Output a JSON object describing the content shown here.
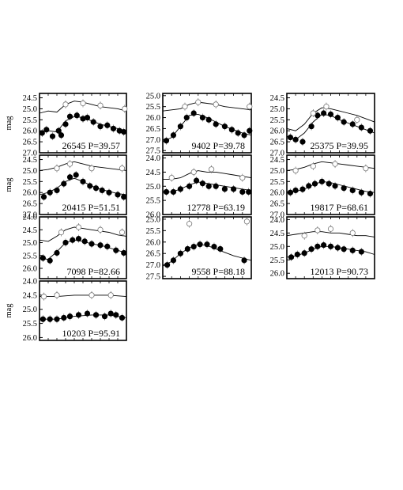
{
  "chart_data": [
    {
      "type": "scatter",
      "title": "26545 P=39.57",
      "ylabel": "mag",
      "ylim": [
        27.0,
        24.3
      ],
      "yticks": [
        "24.5",
        "25.0",
        "25.5",
        "26.0",
        "26.5",
        "27.0"
      ],
      "series": [
        {
          "name": "",
          "marker": "filled",
          "x": [
            0.03,
            0.08,
            0.15,
            0.22,
            0.25,
            0.3,
            0.35,
            0.43,
            0.5,
            0.55,
            0.62,
            0.7,
            0.78,
            0.85,
            0.92,
            0.97
          ],
          "y": [
            26.1,
            25.95,
            26.25,
            26.0,
            26.2,
            25.7,
            25.35,
            25.3,
            25.45,
            25.4,
            25.6,
            25.8,
            25.75,
            25.9,
            26.0,
            26.05
          ]
        },
        {
          "name": "",
          "marker": "open",
          "x": [
            0.3,
            0.5,
            0.7,
            0.98
          ],
          "y": [
            24.8,
            24.75,
            24.85,
            25.0
          ]
        }
      ],
      "curves": [
        {
          "x": [
            0,
            0.1,
            0.2,
            0.3,
            0.4,
            0.5,
            0.6,
            0.7,
            0.8,
            0.9,
            1.0
          ],
          "y": [
            26.05,
            26.0,
            26.05,
            25.55,
            25.35,
            25.4,
            25.55,
            25.7,
            25.8,
            25.9,
            26.0
          ]
        },
        {
          "x": [
            0,
            0.1,
            0.2,
            0.3,
            0.4,
            0.5,
            0.6,
            0.7,
            0.8,
            0.9,
            1.0
          ],
          "y": [
            25.2,
            25.1,
            25.15,
            24.8,
            24.65,
            24.7,
            24.8,
            24.9,
            24.95,
            25.0,
            25.1
          ]
        }
      ]
    },
    {
      "type": "scatter",
      "title": "9402  P=39.78",
      "ylabel": "",
      "ylim": [
        27.6,
        24.9
      ],
      "yticks": [
        "25.0",
        "25.5",
        "26.0",
        "26.5",
        "27.0",
        "27.5"
      ],
      "series": [
        {
          "name": "",
          "marker": "filled",
          "x": [
            0.04,
            0.12,
            0.2,
            0.27,
            0.35,
            0.45,
            0.52,
            0.6,
            0.7,
            0.78,
            0.85,
            0.92,
            0.98
          ],
          "y": [
            27.05,
            26.8,
            26.4,
            26.0,
            25.8,
            26.0,
            26.1,
            26.3,
            26.4,
            26.55,
            26.7,
            26.8,
            26.6
          ]
        },
        {
          "name": "",
          "marker": "open",
          "x": [
            0.25,
            0.4,
            0.6,
            0.98
          ],
          "y": [
            25.5,
            25.3,
            25.4,
            25.5
          ]
        }
      ],
      "curves": [
        {
          "x": [
            0,
            0.1,
            0.2,
            0.3,
            0.4,
            0.5,
            0.6,
            0.7,
            0.8,
            0.9,
            1.0
          ],
          "y": [
            27.1,
            26.9,
            26.4,
            25.9,
            25.85,
            26.0,
            26.2,
            26.4,
            26.55,
            26.7,
            26.8
          ]
        },
        {
          "x": [
            0,
            0.1,
            0.2,
            0.3,
            0.4,
            0.5,
            0.6,
            0.7,
            0.8,
            0.9,
            1.0
          ],
          "y": [
            25.7,
            25.65,
            25.6,
            25.4,
            25.3,
            25.35,
            25.4,
            25.5,
            25.55,
            25.6,
            25.65
          ]
        }
      ]
    },
    {
      "type": "scatter",
      "title": "25375 P=39.95",
      "ylabel": "",
      "ylim": [
        27.0,
        24.3
      ],
      "yticks": [
        "24.5",
        "25.0",
        "25.5",
        "26.0",
        "26.5",
        "27.0"
      ],
      "series": [
        {
          "name": "",
          "marker": "filled",
          "x": [
            0.04,
            0.1,
            0.18,
            0.28,
            0.35,
            0.42,
            0.5,
            0.58,
            0.65,
            0.75,
            0.85,
            0.95
          ],
          "y": [
            26.3,
            26.4,
            26.5,
            25.8,
            25.3,
            25.2,
            25.25,
            25.4,
            25.6,
            25.7,
            25.85,
            26.0
          ]
        },
        {
          "name": "",
          "marker": "open",
          "x": [
            0.3,
            0.45,
            0.8
          ],
          "y": [
            25.2,
            24.9,
            25.5
          ]
        }
      ],
      "curves": [
        {
          "x": [
            0,
            0.1,
            0.2,
            0.3,
            0.4,
            0.5,
            0.6,
            0.7,
            0.8,
            0.9,
            1.0
          ],
          "y": [
            26.25,
            26.4,
            26.1,
            25.6,
            25.25,
            25.3,
            25.5,
            25.65,
            25.8,
            25.95,
            26.1
          ]
        },
        {
          "x": [
            0,
            0.1,
            0.2,
            0.3,
            0.4,
            0.5,
            0.6,
            0.7,
            0.8,
            0.9,
            1.0
          ],
          "y": [
            25.9,
            26.0,
            25.7,
            25.2,
            24.95,
            25.0,
            25.1,
            25.2,
            25.3,
            25.45,
            25.6
          ]
        }
      ]
    },
    {
      "type": "scatter",
      "title": "20415 P=51.51",
      "ylabel": "mag",
      "ylim": [
        27.0,
        24.3
      ],
      "yticks": [
        "24.5",
        "25.0",
        "25.5",
        "26.0",
        "26.5",
        "27.0"
      ],
      "series": [
        {
          "name": "",
          "marker": "filled",
          "x": [
            0.05,
            0.12,
            0.2,
            0.28,
            0.35,
            0.42,
            0.5,
            0.58,
            0.65,
            0.72,
            0.8,
            0.9,
            0.97
          ],
          "y": [
            26.2,
            26.0,
            25.9,
            25.6,
            25.3,
            25.2,
            25.5,
            25.7,
            25.8,
            25.9,
            26.0,
            26.1,
            26.2
          ]
        },
        {
          "name": "",
          "marker": "open",
          "x": [
            0.2,
            0.35,
            0.6,
            0.95
          ],
          "y": [
            24.9,
            24.7,
            24.9,
            24.9
          ]
        }
      ],
      "curves": [
        {
          "x": [
            0,
            0.1,
            0.2,
            0.3,
            0.4,
            0.5,
            0.6,
            0.7,
            0.8,
            0.9,
            1.0
          ],
          "y": [
            26.1,
            26.0,
            25.8,
            25.5,
            25.35,
            25.5,
            25.7,
            25.85,
            25.95,
            26.05,
            26.1
          ]
        },
        {
          "x": [
            0,
            0.1,
            0.2,
            0.3,
            0.4,
            0.5,
            0.6,
            0.7,
            0.8,
            0.9,
            1.0
          ],
          "y": [
            25.0,
            24.95,
            24.85,
            24.7,
            24.6,
            24.7,
            24.8,
            24.85,
            24.9,
            24.95,
            25.0
          ]
        }
      ]
    },
    {
      "type": "scatter",
      "title": "12778 P=63.19",
      "ylabel": "",
      "ylim": [
        26.0,
        23.9
      ],
      "yticks": [
        "24.0",
        "24.5",
        "25.0",
        "25.5",
        "26.0"
      ],
      "series": [
        {
          "name": "",
          "marker": "filled",
          "x": [
            0.04,
            0.12,
            0.2,
            0.3,
            0.38,
            0.45,
            0.52,
            0.6,
            0.7,
            0.8,
            0.9,
            0.97
          ],
          "y": [
            25.2,
            25.2,
            25.1,
            25.0,
            24.8,
            24.9,
            25.0,
            25.0,
            25.1,
            25.1,
            25.2,
            25.2
          ]
        },
        {
          "name": "",
          "marker": "open",
          "x": [
            0.1,
            0.35,
            0.55,
            0.9
          ],
          "y": [
            24.7,
            24.5,
            24.4,
            24.7
          ]
        }
      ],
      "curves": [
        {
          "x": [
            0,
            0.1,
            0.2,
            0.3,
            0.4,
            0.5,
            0.6,
            0.7,
            0.8,
            0.9,
            1.0
          ],
          "y": [
            25.2,
            25.2,
            25.1,
            24.95,
            24.85,
            24.9,
            24.95,
            25.0,
            25.05,
            25.1,
            25.15
          ]
        },
        {
          "x": [
            0,
            0.1,
            0.2,
            0.3,
            0.4,
            0.5,
            0.6,
            0.7,
            0.8,
            0.9,
            1.0
          ],
          "y": [
            24.75,
            24.75,
            24.7,
            24.55,
            24.45,
            24.5,
            24.5,
            24.55,
            24.6,
            24.65,
            24.7
          ]
        }
      ]
    },
    {
      "type": "scatter",
      "title": "19817 P=68.61",
      "ylabel": "",
      "ylim": [
        27.0,
        24.3
      ],
      "yticks": [
        "24.5",
        "25.0",
        "25.5",
        "26.0",
        "26.5",
        "27.0"
      ],
      "series": [
        {
          "name": "",
          "marker": "filled",
          "x": [
            0.04,
            0.1,
            0.18,
            0.25,
            0.32,
            0.4,
            0.48,
            0.55,
            0.65,
            0.75,
            0.85,
            0.95
          ],
          "y": [
            26.0,
            25.9,
            25.85,
            25.7,
            25.6,
            25.5,
            25.6,
            25.7,
            25.8,
            25.9,
            26.0,
            26.05
          ]
        },
        {
          "name": "",
          "marker": "open",
          "x": [
            0.1,
            0.3,
            0.55,
            0.9
          ],
          "y": [
            25.0,
            24.8,
            24.7,
            24.9
          ]
        }
      ],
      "curves": [
        {
          "x": [
            0,
            0.1,
            0.2,
            0.3,
            0.4,
            0.5,
            0.6,
            0.7,
            0.8,
            0.9,
            1.0
          ],
          "y": [
            26.0,
            25.95,
            25.85,
            25.65,
            25.5,
            25.55,
            25.65,
            25.75,
            25.85,
            25.95,
            26.0
          ]
        },
        {
          "x": [
            0,
            0.1,
            0.2,
            0.3,
            0.4,
            0.5,
            0.6,
            0.7,
            0.8,
            0.9,
            1.0
          ],
          "y": [
            25.0,
            24.95,
            24.85,
            24.7,
            24.6,
            24.65,
            24.7,
            24.75,
            24.8,
            24.85,
            24.9
          ]
        }
      ]
    },
    {
      "type": "scatter",
      "title": "7098  P=82.66",
      "ylabel": "",
      "ylim": [
        26.4,
        24.0
      ],
      "yticks": [
        "24.0",
        "24.5",
        "25.0",
        "25.5",
        "26.0"
      ],
      "series": [
        {
          "name": "",
          "marker": "filled",
          "x": [
            0.04,
            0.12,
            0.2,
            0.3,
            0.38,
            0.45,
            0.52,
            0.6,
            0.7,
            0.78,
            0.88,
            0.97
          ],
          "y": [
            25.6,
            25.7,
            25.4,
            25.0,
            24.9,
            24.85,
            24.95,
            25.05,
            25.1,
            25.15,
            25.3,
            25.4
          ]
        },
        {
          "name": "",
          "marker": "open",
          "x": [
            0.25,
            0.45,
            0.7,
            0.95
          ],
          "y": [
            24.6,
            24.4,
            24.5,
            24.6
          ]
        }
      ],
      "curves": [
        {
          "x": [
            0,
            0.1,
            0.2,
            0.3,
            0.4,
            0.5,
            0.6,
            0.7,
            0.8,
            0.9,
            1.0
          ],
          "y": [
            25.6,
            25.65,
            25.35,
            25.0,
            24.9,
            24.95,
            25.05,
            25.1,
            25.2,
            25.3,
            25.4
          ]
        },
        {
          "x": [
            0,
            0.1,
            0.2,
            0.3,
            0.4,
            0.5,
            0.6,
            0.7,
            0.8,
            0.9,
            1.0
          ],
          "y": [
            24.9,
            24.95,
            24.75,
            24.5,
            24.4,
            24.45,
            24.5,
            24.55,
            24.6,
            24.7,
            24.75
          ]
        }
      ]
    },
    {
      "type": "scatter",
      "title": "9558  P=88.18",
      "ylabel": "",
      "ylim": [
        27.6,
        24.9
      ],
      "yticks": [
        "25.0",
        "25.5",
        "26.0",
        "26.5",
        "27.0",
        "27.5"
      ],
      "series": [
        {
          "name": "",
          "marker": "filled",
          "x": [
            0.05,
            0.12,
            0.2,
            0.28,
            0.35,
            0.42,
            0.5,
            0.58,
            0.65,
            0.92
          ],
          "y": [
            27.0,
            26.8,
            26.5,
            26.3,
            26.2,
            26.1,
            26.1,
            26.2,
            26.3,
            26.8
          ]
        },
        {
          "name": "",
          "marker": "open",
          "x": [
            0.3,
            0.95
          ],
          "y": [
            25.2,
            25.1
          ]
        }
      ],
      "curves": [
        {
          "x": [
            0,
            0.1,
            0.2,
            0.3,
            0.4,
            0.5,
            0.6,
            0.7,
            0.8,
            0.9,
            1.0
          ],
          "y": [
            27.05,
            26.85,
            26.5,
            26.25,
            26.1,
            26.15,
            26.3,
            26.45,
            26.6,
            26.7,
            26.8
          ]
        }
      ]
    },
    {
      "type": "scatter",
      "title": "12013 P=90.73",
      "ylabel": "",
      "ylim": [
        26.2,
        23.9
      ],
      "yticks": [
        "24.0",
        "24.5",
        "25.0",
        "25.5",
        "26.0"
      ],
      "series": [
        {
          "name": "",
          "marker": "filled",
          "x": [
            0.05,
            0.12,
            0.2,
            0.28,
            0.35,
            0.42,
            0.5,
            0.58,
            0.65,
            0.75,
            0.85
          ],
          "y": [
            25.4,
            25.3,
            25.25,
            25.1,
            25.0,
            24.95,
            25.0,
            25.05,
            25.1,
            25.15,
            25.2
          ]
        },
        {
          "name": "",
          "marker": "open",
          "x": [
            0.2,
            0.35,
            0.5,
            0.75
          ],
          "y": [
            24.6,
            24.4,
            24.35,
            24.5
          ]
        }
      ],
      "curves": [
        {
          "x": [
            0,
            0.1,
            0.2,
            0.3,
            0.4,
            0.5,
            0.6,
            0.7,
            0.8,
            0.9,
            1.0
          ],
          "y": [
            25.4,
            25.35,
            25.25,
            25.1,
            25.0,
            25.0,
            25.05,
            25.1,
            25.15,
            25.2,
            25.3
          ]
        },
        {
          "x": [
            0,
            0.1,
            0.2,
            0.3,
            0.4,
            0.5,
            0.6,
            0.7,
            0.8,
            0.9,
            1.0
          ],
          "y": [
            24.6,
            24.55,
            24.5,
            24.45,
            24.45,
            24.5,
            24.5,
            24.55,
            24.6,
            24.6,
            24.65
          ]
        }
      ]
    },
    {
      "type": "scatter",
      "title": "10203 P=95.91",
      "ylabel": "mag",
      "ylim": [
        26.1,
        24.0
      ],
      "yticks": [
        "24.0",
        "24.5",
        "25.0",
        "25.5",
        "26.0"
      ],
      "series": [
        {
          "name": "",
          "marker": "filled",
          "x": [
            0.04,
            0.12,
            0.2,
            0.28,
            0.35,
            0.45,
            0.55,
            0.65,
            0.75,
            0.82,
            0.88,
            0.95
          ],
          "y": [
            25.35,
            25.35,
            25.35,
            25.3,
            25.25,
            25.2,
            25.15,
            25.2,
            25.25,
            25.15,
            25.2,
            25.3
          ]
        },
        {
          "name": "",
          "marker": "open",
          "x": [
            0.05,
            0.2,
            0.6,
            0.82
          ],
          "y": [
            24.55,
            24.5,
            24.5,
            24.5
          ]
        }
      ],
      "curves": [
        {
          "x": [
            0,
            0.2,
            0.4,
            0.6,
            0.8,
            1.0
          ],
          "y": [
            25.35,
            25.35,
            25.25,
            25.2,
            25.2,
            25.3
          ]
        },
        {
          "x": [
            0,
            0.2,
            0.4,
            0.6,
            0.8,
            1.0
          ],
          "y": [
            24.55,
            24.55,
            24.5,
            24.5,
            24.5,
            24.55
          ]
        }
      ]
    }
  ]
}
